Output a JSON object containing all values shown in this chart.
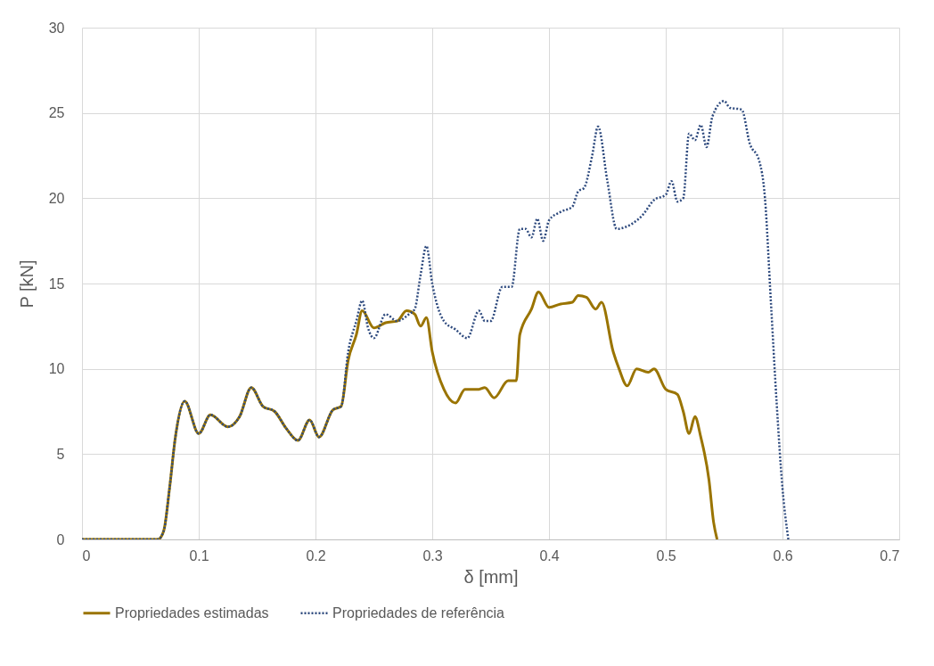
{
  "chart_data": {
    "type": "line",
    "xlabel": "δ [mm]",
    "ylabel": "P [kN]",
    "xlim": [
      0,
      0.7
    ],
    "xticks": [
      0,
      0.1,
      0.2,
      0.3,
      0.4,
      0.5,
      0.6,
      0.7
    ],
    "ylim": [
      0,
      30
    ],
    "yticks": [
      0,
      5,
      10,
      15,
      20,
      25,
      30
    ],
    "grid": true,
    "legend": "bottom",
    "series": [
      {
        "name": "Propriedades estimadas",
        "color": "#9a7400",
        "line_style": "solid",
        "x": [
          0,
          0.065,
          0.07,
          0.075,
          0.08,
          0.088,
          0.1,
          0.11,
          0.125,
          0.135,
          0.145,
          0.155,
          0.165,
          0.175,
          0.185,
          0.195,
          0.203,
          0.215,
          0.222,
          0.228,
          0.235,
          0.24,
          0.25,
          0.26,
          0.27,
          0.278,
          0.285,
          0.29,
          0.295,
          0.3,
          0.31,
          0.32,
          0.328,
          0.34,
          0.345,
          0.353,
          0.365,
          0.372,
          0.375,
          0.385,
          0.391,
          0.4,
          0.41,
          0.42,
          0.425,
          0.432,
          0.44,
          0.445,
          0.455,
          0.46,
          0.467,
          0.475,
          0.485,
          0.49,
          0.5,
          0.51,
          0.515,
          0.52,
          0.525,
          0.53,
          0.537,
          0.541,
          0.544
        ],
        "values": [
          0,
          0,
          0.5,
          3,
          6,
          8.1,
          6.2,
          7.3,
          6.6,
          7.2,
          8.9,
          7.8,
          7.5,
          6.5,
          5.8,
          7.0,
          6.0,
          7.6,
          7.8,
          10.5,
          12,
          13.4,
          12.4,
          12.7,
          12.8,
          13.4,
          13.2,
          12.5,
          13,
          11,
          8.8,
          8,
          8.8,
          8.8,
          8.9,
          8.3,
          9.3,
          9.3,
          12,
          13.5,
          14.5,
          13.6,
          13.8,
          13.9,
          14.3,
          14.2,
          13.5,
          13.9,
          11,
          10,
          9,
          10,
          9.8,
          10,
          8.8,
          8.5,
          7.5,
          6.2,
          7.2,
          6,
          3.5,
          1,
          0
        ]
      },
      {
        "name": "Propriedades de referência",
        "color": "#2e4a7e",
        "line_style": "dotted",
        "x": [
          0,
          0.065,
          0.07,
          0.075,
          0.08,
          0.088,
          0.1,
          0.11,
          0.125,
          0.135,
          0.145,
          0.155,
          0.165,
          0.175,
          0.185,
          0.195,
          0.203,
          0.215,
          0.222,
          0.228,
          0.235,
          0.24,
          0.245,
          0.25,
          0.26,
          0.27,
          0.28,
          0.285,
          0.29,
          0.295,
          0.3,
          0.31,
          0.32,
          0.33,
          0.34,
          0.345,
          0.35,
          0.36,
          0.368,
          0.375,
          0.38,
          0.385,
          0.39,
          0.395,
          0.4,
          0.41,
          0.42,
          0.425,
          0.43,
          0.437,
          0.442,
          0.45,
          0.458,
          0.465,
          0.48,
          0.49,
          0.5,
          0.505,
          0.51,
          0.515,
          0.52,
          0.525,
          0.53,
          0.535,
          0.54,
          0.55,
          0.555,
          0.565,
          0.572,
          0.58,
          0.585,
          0.59,
          0.595,
          0.6,
          0.605
        ],
        "values": [
          0,
          0,
          0.5,
          3,
          6,
          8.1,
          6.2,
          7.3,
          6.6,
          7.2,
          8.9,
          7.8,
          7.5,
          6.5,
          5.8,
          7.0,
          6.0,
          7.6,
          7.8,
          11,
          12.8,
          14,
          12.4,
          11.8,
          13.2,
          12.8,
          13.2,
          13.5,
          15.5,
          17.2,
          15,
          12.8,
          12.3,
          11.8,
          13.4,
          12.8,
          12.8,
          14.8,
          14.8,
          18.2,
          18.2,
          17.7,
          18.8,
          17.5,
          18.7,
          19.2,
          19.5,
          20.4,
          20.6,
          22.5,
          24.2,
          21,
          18.2,
          18.3,
          19,
          19.9,
          20.2,
          21,
          19.8,
          20,
          23.8,
          23.4,
          24.3,
          23,
          24.8,
          25.7,
          25.3,
          25.2,
          23.2,
          22.2,
          20,
          14,
          8,
          3,
          0
        ]
      }
    ]
  }
}
